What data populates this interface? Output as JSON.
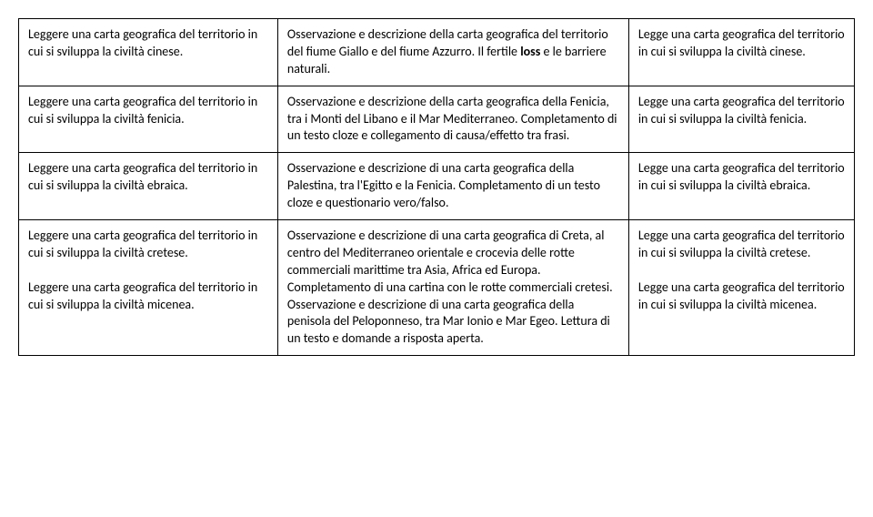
{
  "rows": [
    {
      "col1": "Leggere una carta geografica del territorio in cui si sviluppa la civiltà cinese.",
      "col2_before": "Osservazione e descrizione della carta geografica del territorio del fiume Giallo e del fiume Azzurro. Il fertile ",
      "col2_bold": "loss",
      "col2_after": " e le barriere naturali.",
      "col3": "Legge una carta geografica del territorio in cui si sviluppa la civiltà cinese."
    },
    {
      "col1": "Leggere una carta geografica del territorio in cui si sviluppa la civiltà fenicia.",
      "col2_before": "Osservazione e descrizione della carta geografica della Fenicia, tra i Monti del Libano e il Mar Mediterraneo. Completamento di un testo cloze e collegamento di causa/effetto tra frasi.",
      "col2_bold": "",
      "col2_after": "",
      "col3": "Legge una carta geografica del territorio in cui si sviluppa la civiltà fenicia."
    },
    {
      "col1": "Leggere una carta geografica del territorio in cui si sviluppa la civiltà ebraica.",
      "col2_before": "Osservazione e descrizione di una carta geografica della Palestina, tra l'Egitto e la Fenicia. Completamento di un testo cloze e questionario vero/falso.",
      "col2_bold": "",
      "col2_after": "",
      "col3": "Legge una carta geografica del territorio in cui si sviluppa la civiltà ebraica."
    },
    {
      "col1a": "Leggere una carta geografica del territorio in cui si sviluppa la civiltà cretese.",
      "col1b": "Leggere una carta geografica del territorio in cui si sviluppa la civiltà micenea.",
      "col2a": "Osservazione e descrizione di una carta geografica di Creta, al centro del Mediterraneo orientale e crocevia delle rotte commerciali marittime tra Asia, Africa ed Europa. Completamento di una cartina con le rotte commerciali cretesi.",
      "col2b": "Osservazione e descrizione di una carta geografica della penisola del Peloponneso, tra Mar Ionio e Mar Egeo. Lettura di un testo e domande a risposta aperta.",
      "col3a": "Legge una carta geografica del territorio in cui si sviluppa la civiltà cretese.",
      "col3b": "Legge una carta geografica del territorio in cui si sviluppa la civiltà micenea."
    }
  ]
}
